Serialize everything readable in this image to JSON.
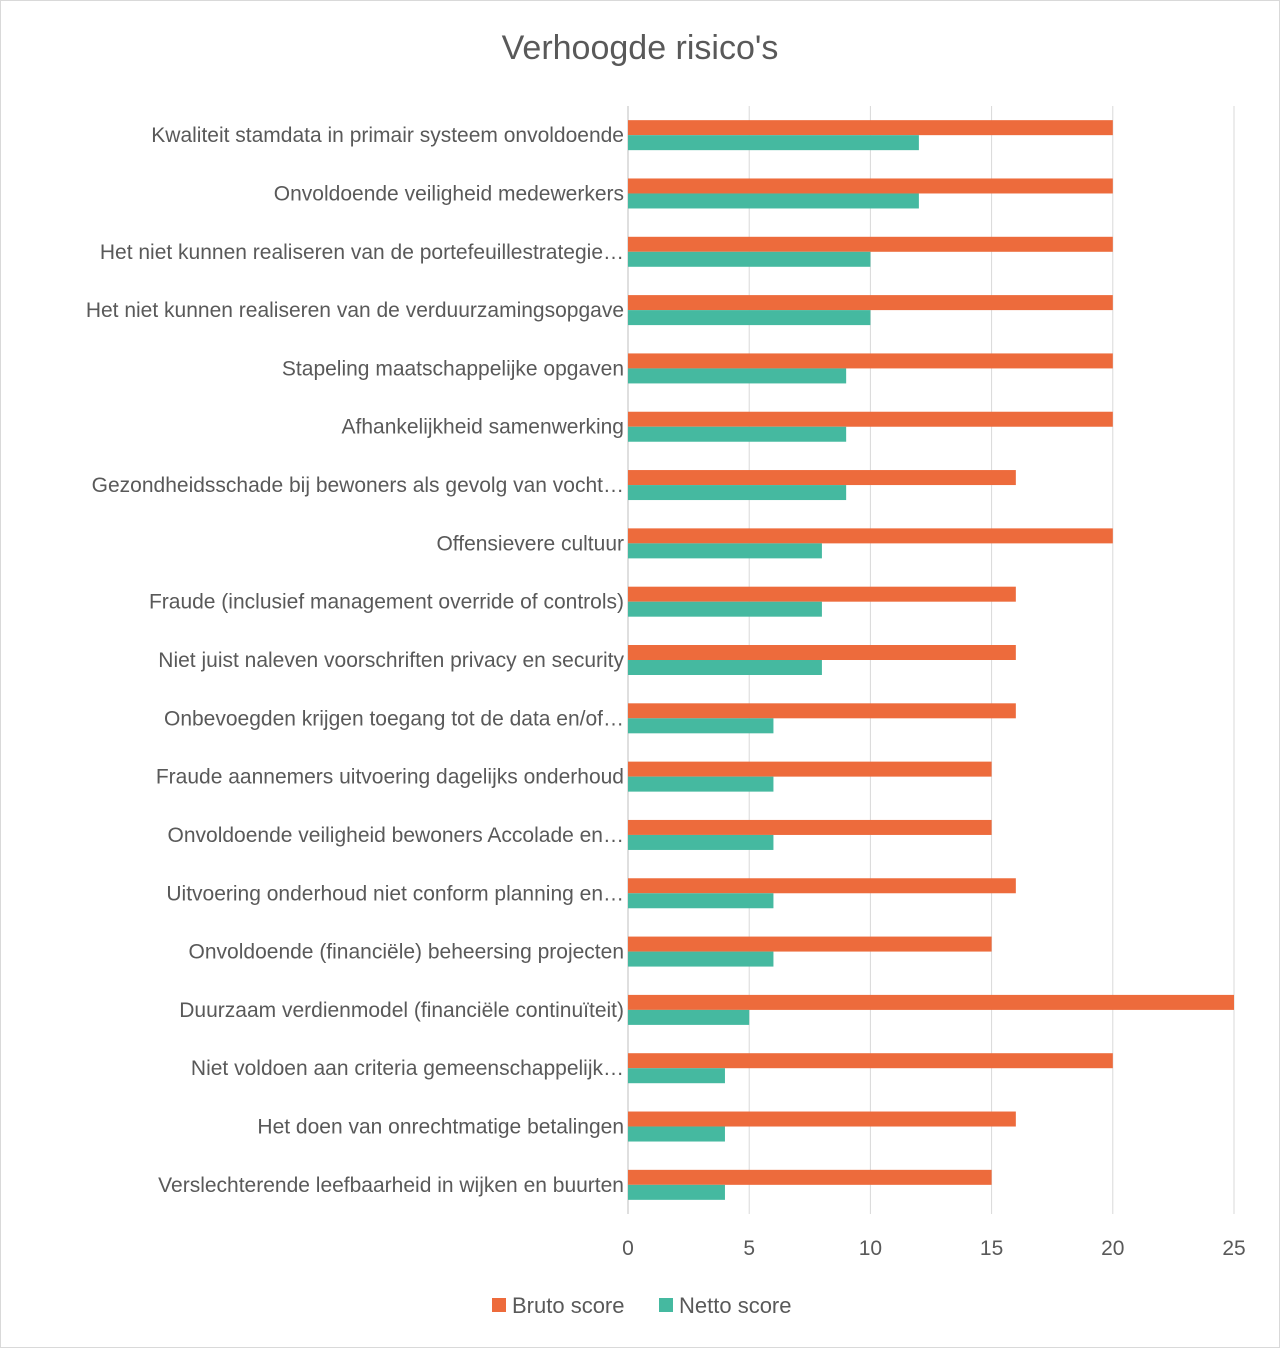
{
  "chart_data": {
    "type": "bar",
    "orientation": "horizontal",
    "title": "Verhoogde risico's",
    "categories": [
      "Kwaliteit stamdata in primair systeem onvoldoende",
      "Onvoldoende veiligheid medewerkers",
      "Het niet kunnen realiseren van de portefeuillestrategie…",
      "Het niet kunnen realiseren van de verduurzamingsopgave",
      "Stapeling maatschappelijke opgaven",
      "Afhankelijkheid samenwerking",
      "Gezondheidsschade bij bewoners als gevolg van vocht…",
      "Offensievere cultuur",
      "Fraude (inclusief management override of controls)",
      "Niet juist naleven voorschriften privacy en security",
      "Onbevoegden krijgen toegang tot de data en/of…",
      "Fraude aannemers uitvoering dagelijks onderhoud",
      "Onvoldoende veiligheid bewoners Accolade en…",
      "Uitvoering onderhoud niet conform planning en…",
      "Onvoldoende (financiële) beheersing projecten",
      "Duurzaam verdienmodel (financiële continuïteit)",
      "Niet voldoen aan criteria gemeenschappelijk…",
      "Het doen van onrechtmatige betalingen",
      "Verslechterende leefbaarheid in wijken en buurten"
    ],
    "series": [
      {
        "name": "Bruto score",
        "color": "#ED6B3C",
        "values": [
          20,
          20,
          20,
          20,
          20,
          20,
          16,
          20,
          16,
          16,
          16,
          15,
          15,
          16,
          15,
          25,
          20,
          16,
          15
        ]
      },
      {
        "name": "Netto score",
        "color": "#45B9A0",
        "values": [
          12,
          12,
          10,
          10,
          9,
          9,
          9,
          8,
          8,
          8,
          6,
          6,
          6,
          6,
          6,
          5,
          4,
          4,
          4
        ]
      }
    ],
    "xlim": [
      0,
      25
    ],
    "xticks": [
      0,
      5,
      10,
      15,
      20,
      25
    ],
    "xlabel": "",
    "ylabel": "",
    "grid": true,
    "legend": "bottom"
  }
}
